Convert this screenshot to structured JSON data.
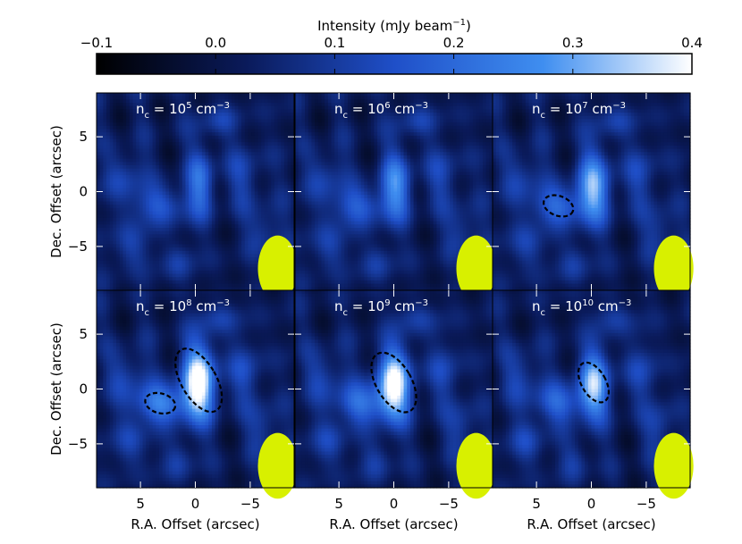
{
  "chart_data": {
    "type": "heatmap",
    "colorbar": {
      "title": "Intensity (mJy beam",
      "title_exp": "−1",
      "title_close": ")",
      "range": [
        -0.1,
        0.4
      ],
      "ticks": [
        "−0.1",
        "0.0",
        "0.1",
        "0.2",
        "0.3",
        "0.4"
      ],
      "colors": [
        "#000000",
        "#0a1a5a",
        "#1f4fc8",
        "#3f8ef0",
        "#ffffff"
      ]
    },
    "xlabel": "R.A. Offset (arcsec)",
    "ylabel": "Dec. Offset (arcsec)",
    "xticks": [
      "5",
      "0",
      "−5"
    ],
    "yticks": [
      "5",
      "0",
      "−5"
    ],
    "xlim": [
      9,
      -9
    ],
    "ylim": [
      -9,
      9
    ],
    "beam_color": "#d8f000",
    "panels": [
      {
        "label": "n",
        "sub": "c",
        "eq": " = 10",
        "exp": "5",
        "unit": " cm",
        "unit_exp": "−3",
        "contours": []
      },
      {
        "label": "n",
        "sub": "c",
        "eq": " = 10",
        "exp": "6",
        "unit": " cm",
        "unit_exp": "−3",
        "contours": []
      },
      {
        "label": "n",
        "sub": "c",
        "eq": " = 10",
        "exp": "7",
        "unit": " cm",
        "unit_exp": "−3",
        "contours": [
          {
            "x": 3.0,
            "y": -1.3,
            "w": 1.4,
            "h": 0.9,
            "ang": 20
          }
        ]
      },
      {
        "label": "n",
        "sub": "c",
        "eq": " = 10",
        "exp": "8",
        "unit": " cm",
        "unit_exp": "−3",
        "contours": [
          {
            "x": -0.3,
            "y": 0.8,
            "w": 1.6,
            "h": 3.2,
            "ang": -30
          },
          {
            "x": 3.2,
            "y": -1.3,
            "w": 1.4,
            "h": 0.9,
            "ang": 15
          }
        ]
      },
      {
        "label": "n",
        "sub": "c",
        "eq": " = 10",
        "exp": "9",
        "unit": " cm",
        "unit_exp": "−3",
        "contours": [
          {
            "x": 0.0,
            "y": 0.6,
            "w": 1.6,
            "h": 3.0,
            "ang": -30
          }
        ]
      },
      {
        "label": "n",
        "sub": "c",
        "eq": " = 10",
        "exp": "10",
        "unit": " cm",
        "unit_exp": "−3",
        "contours": [
          {
            "x": -0.2,
            "y": 0.6,
            "w": 1.1,
            "h": 2.0,
            "ang": -30
          }
        ]
      }
    ],
    "peaks": [
      [
        [
          -0.5,
          0.9,
          0.9,
          2.2,
          0.18
        ],
        [
          3.2,
          -1.2,
          2.0,
          1.2,
          0.14
        ],
        [
          6.5,
          1.5,
          1.3,
          1.6,
          0.1
        ],
        [
          5.8,
          -5.0,
          1.2,
          1.4,
          0.1
        ],
        [
          -4.5,
          1.5,
          1.2,
          2.0,
          0.09
        ],
        [
          -6.3,
          -3.5,
          1.0,
          1.6,
          0.1
        ],
        [
          1.5,
          -6.5,
          1.0,
          1.3,
          0.08
        ],
        [
          -2.0,
          6.5,
          1.4,
          1.0,
          0.08
        ]
      ],
      [
        [
          -0.2,
          0.6,
          1.0,
          2.2,
          0.22
        ],
        [
          3.2,
          -1.3,
          2.0,
          1.2,
          0.15
        ],
        [
          6.3,
          1.5,
          1.2,
          1.6,
          0.1
        ],
        [
          5.8,
          -5.0,
          1.2,
          1.4,
          0.1
        ],
        [
          -4.5,
          1.5,
          1.2,
          2.0,
          0.09
        ],
        [
          -6.3,
          -3.5,
          1.0,
          1.6,
          0.1
        ],
        [
          1.5,
          -6.5,
          1.0,
          1.3,
          0.08
        ],
        [
          -2.0,
          6.5,
          1.4,
          1.0,
          0.08
        ]
      ],
      [
        [
          -0.2,
          0.5,
          1.1,
          2.3,
          0.27
        ],
        [
          3.0,
          -1.3,
          2.0,
          1.2,
          0.17
        ],
        [
          6.3,
          1.5,
          1.2,
          1.6,
          0.1
        ],
        [
          5.8,
          -5.0,
          1.2,
          1.4,
          0.1
        ],
        [
          -4.5,
          1.5,
          1.2,
          2.0,
          0.09
        ],
        [
          -6.3,
          -3.5,
          1.0,
          1.6,
          0.1
        ],
        [
          1.5,
          -6.5,
          1.0,
          1.3,
          0.08
        ],
        [
          -2.0,
          6.5,
          1.4,
          1.0,
          0.08
        ]
      ],
      [
        [
          -0.3,
          0.7,
          1.1,
          2.4,
          0.4
        ],
        [
          3.2,
          -1.3,
          2.0,
          1.2,
          0.22
        ],
        [
          6.3,
          1.5,
          1.2,
          1.6,
          0.1
        ],
        [
          5.8,
          -5.0,
          1.2,
          1.4,
          0.1
        ],
        [
          -4.5,
          1.5,
          1.2,
          2.0,
          0.1
        ],
        [
          -6.3,
          -3.5,
          1.0,
          1.6,
          0.1
        ],
        [
          1.5,
          -6.5,
          1.0,
          1.3,
          0.08
        ],
        [
          -2.0,
          6.5,
          1.4,
          1.0,
          0.08
        ]
      ],
      [
        [
          0.0,
          0.5,
          1.1,
          2.3,
          0.38
        ],
        [
          3.0,
          -1.3,
          2.0,
          1.2,
          0.18
        ],
        [
          6.3,
          1.5,
          1.2,
          1.6,
          0.1
        ],
        [
          5.8,
          -5.0,
          1.2,
          1.4,
          0.1
        ],
        [
          -4.5,
          1.5,
          1.2,
          2.0,
          0.09
        ],
        [
          -6.3,
          -3.5,
          1.0,
          1.6,
          0.1
        ],
        [
          1.5,
          -6.5,
          1.0,
          1.3,
          0.08
        ],
        [
          -2.0,
          6.5,
          1.4,
          1.0,
          0.08
        ]
      ],
      [
        [
          -0.2,
          0.5,
          1.0,
          2.2,
          0.3
        ],
        [
          3.0,
          -1.3,
          2.0,
          1.2,
          0.16
        ],
        [
          6.3,
          1.5,
          1.2,
          1.6,
          0.1
        ],
        [
          5.8,
          -5.0,
          1.2,
          1.4,
          0.1
        ],
        [
          -4.5,
          1.5,
          1.2,
          2.0,
          0.09
        ],
        [
          -6.3,
          -3.5,
          1.0,
          1.6,
          0.1
        ],
        [
          1.5,
          -6.5,
          1.0,
          1.3,
          0.08
        ],
        [
          -2.0,
          6.5,
          1.4,
          1.0,
          0.08
        ]
      ]
    ],
    "beam": {
      "x": -7.5,
      "y": -7.0,
      "w": 1.8,
      "h": 3.0
    }
  }
}
